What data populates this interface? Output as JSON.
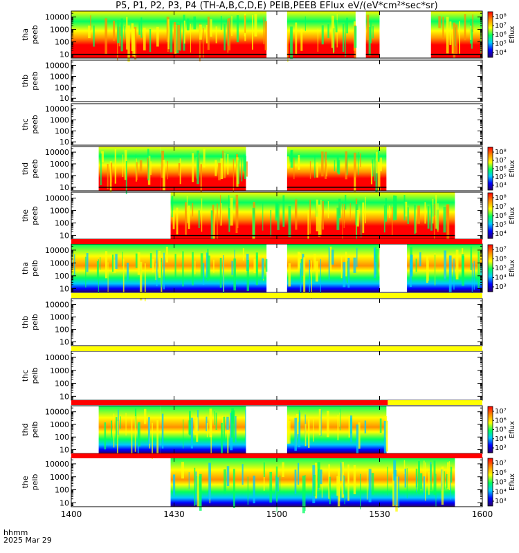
{
  "title": "P5, P1, P2, P3, P4 (TH-A,B,C,D,E) PEIB,PEEB EFlux eV/(eV*cm²*sec*sr)",
  "footer": {
    "line1": "hhmm",
    "line2": "2025 Mar 29"
  },
  "colors": {
    "flag_red": "#ff0000",
    "flag_yellow": "#ffff00",
    "cmap": [
      "#2a0066",
      "#0000ff",
      "#00c8ff",
      "#00ff60",
      "#ffff00",
      "#ff9000",
      "#ff0000"
    ]
  },
  "chart_data": {
    "type": "heatmap",
    "x_axis": {
      "range": [
        "1400",
        "1600"
      ],
      "ticks": [
        "1400",
        "1430",
        "1500",
        "1530",
        "1600"
      ],
      "label": "hhmm"
    },
    "y_axis": {
      "scale": "log",
      "range": [
        5,
        30000
      ],
      "ticks": [
        "10",
        "100",
        "1000",
        "10000"
      ]
    },
    "panels": [
      {
        "label": [
          "tha",
          "peeb"
        ],
        "has_data": true,
        "coverage": [
          [
            1400,
            1457
          ],
          [
            1503,
            1523
          ],
          [
            1526,
            1530
          ],
          [
            1545,
            1600
          ]
        ],
        "colorbar": {
          "label": "Eflux",
          "ticks": [
            "10⁴",
            "10⁵",
            "10⁶",
            "10⁷",
            "10⁸"
          ]
        }
      },
      {
        "label": [
          "thb",
          "peeb"
        ],
        "has_data": false,
        "coverage": []
      },
      {
        "label": [
          "thc",
          "peeb"
        ],
        "has_data": false,
        "coverage": []
      },
      {
        "label": [
          "thd",
          "peeb"
        ],
        "has_data": true,
        "coverage": [
          [
            1408,
            1426
          ],
          [
            1426,
            1451
          ],
          [
            1503,
            1532
          ]
        ],
        "colorbar": {
          "label": "Eflux",
          "ticks": [
            "10⁴",
            "10⁵",
            "10⁶",
            "10⁷",
            "10⁸"
          ]
        }
      },
      {
        "label": [
          "the",
          "peeb"
        ],
        "has_data": true,
        "coverage": [
          [
            1429,
            1552
          ]
        ],
        "colorbar": {
          "label": "Eflux",
          "ticks": [
            "10⁴",
            "10⁵",
            "10⁶",
            "10⁷",
            "10⁸"
          ]
        }
      },
      {
        "label": [
          "tha",
          "peib"
        ],
        "has_data": true,
        "coverage": [
          [
            1400,
            1457
          ],
          [
            1503,
            1530
          ],
          [
            1538,
            1600
          ]
        ],
        "colorbar": {
          "label": "Eflux",
          "ticks": [
            "10³",
            "10⁴",
            "10⁵",
            "10⁶",
            "10⁷"
          ]
        }
      },
      {
        "label": [
          "thb",
          "peib"
        ],
        "has_data": false,
        "coverage": []
      },
      {
        "label": [
          "thc",
          "peib"
        ],
        "has_data": false,
        "coverage": []
      },
      {
        "label": [
          "thd",
          "peib"
        ],
        "has_data": true,
        "coverage": [
          [
            1408,
            1426
          ],
          [
            1426,
            1451
          ],
          [
            1503,
            1532
          ]
        ],
        "colorbar": {
          "label": "Eflux",
          "ticks": [
            "10³",
            "10⁴",
            "10⁵",
            "10⁶",
            "10⁷"
          ]
        }
      },
      {
        "label": [
          "the",
          "peib"
        ],
        "has_data": true,
        "coverage": [
          [
            1429,
            1552
          ]
        ],
        "colorbar": {
          "label": "Eflux",
          "ticks": [
            "10³",
            "10⁴",
            "10⁵",
            "10⁶",
            "10⁷"
          ]
        }
      }
    ]
  }
}
